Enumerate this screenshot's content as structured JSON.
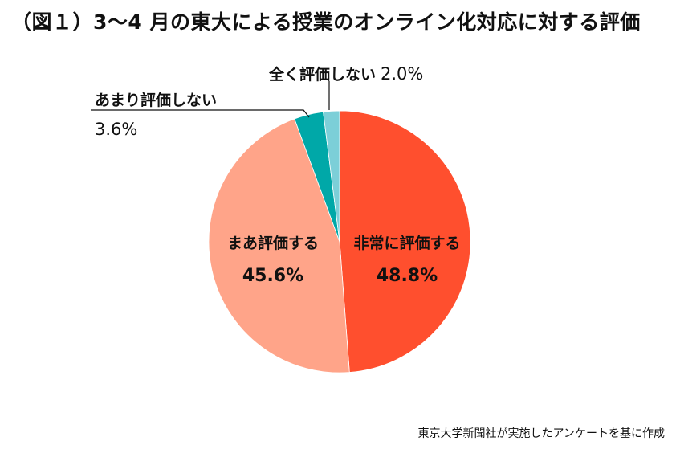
{
  "title": "（図１）3〜4 月の東大による授業のオンライン化対応に対する評価",
  "source": "東京大学新聞社が実施したアンケートを基に作成",
  "chart_data": {
    "type": "pie",
    "start": "12 o'clock",
    "direction": "clockwise",
    "slices": [
      {
        "label": "非常に評価する",
        "value": 48.8,
        "display": "48.8%",
        "color": "#ff4f2e"
      },
      {
        "label": "まあ評価する",
        "value": 45.6,
        "display": "45.6%",
        "color": "#ffa489"
      },
      {
        "label": "あまり評価しない",
        "value": 3.6,
        "display": "3.6%",
        "color": "#00a8a8"
      },
      {
        "label": "全く評価しない",
        "value": 2.0,
        "display": "2.0%",
        "color": "#7ccfd8"
      }
    ]
  }
}
